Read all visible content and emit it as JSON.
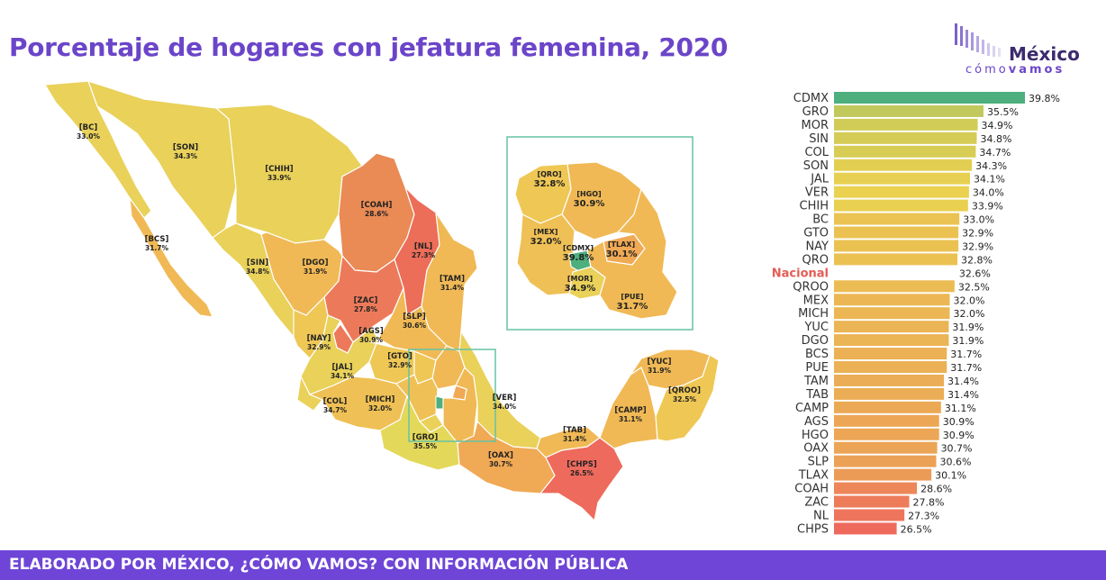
{
  "title": "Porcentaje de hogares con jefatura femenina, 2020",
  "logo": {
    "word": "México",
    "sub_light": "cómo",
    "sub_bold": "vamos"
  },
  "footer": "ELABORADO POR MÉXICO, ¿CÓMO VAMOS? CON INFORMACIÓN PÚBLICA",
  "colors": {
    "title": "#6b45c9",
    "footer_bg": "#6e45d6",
    "nacional_label": "#e35d55",
    "inset_border": "#66c2a5",
    "scale_high": "#4caf7d",
    "scale_mid": "#ead150",
    "scale_low": "#ee6a5d"
  },
  "map_labels": [
    {
      "code": "[BC]",
      "value": "33.0%"
    },
    {
      "code": "[SON]",
      "value": "34.3%"
    },
    {
      "code": "[CHIH]",
      "value": "33.9%"
    },
    {
      "code": "[BCS]",
      "value": "31.7%"
    },
    {
      "code": "[COAH]",
      "value": "28.6%"
    },
    {
      "code": "[NL]",
      "value": "27.3%"
    },
    {
      "code": "[SIN]",
      "value": "34.8%"
    },
    {
      "code": "[DGO]",
      "value": "31.9%"
    },
    {
      "code": "[TAM]",
      "value": "31.4%"
    },
    {
      "code": "[ZAC]",
      "value": "27.8%"
    },
    {
      "code": "[SLP]",
      "value": "30.6%"
    },
    {
      "code": "[NAY]",
      "value": "32.9%"
    },
    {
      "code": "[AGS]",
      "value": "30.9%"
    },
    {
      "code": "[GTO]",
      "value": "32.9%"
    },
    {
      "code": "[JAL]",
      "value": "34.1%"
    },
    {
      "code": "[VER]",
      "value": "34.0%"
    },
    {
      "code": "[COL]",
      "value": "34.7%"
    },
    {
      "code": "[MICH]",
      "value": "32.0%"
    },
    {
      "code": "[GRO]",
      "value": "35.5%"
    },
    {
      "code": "[OAX]",
      "value": "30.7%"
    },
    {
      "code": "[TAB]",
      "value": "31.4%"
    },
    {
      "code": "[CHPS]",
      "value": "26.5%"
    },
    {
      "code": "[CAMP]",
      "value": "31.1%"
    },
    {
      "code": "[YUC]",
      "value": "31.9%"
    },
    {
      "code": "[QROO]",
      "value": "32.5%"
    }
  ],
  "inset_labels": [
    {
      "code": "[QRO]",
      "value": "32.8%"
    },
    {
      "code": "[HGO]",
      "value": "30.9%"
    },
    {
      "code": "[MEX]",
      "value": "32.0%"
    },
    {
      "code": "[CDMX]",
      "value": "39.8%"
    },
    {
      "code": "[TLAX]",
      "value": "30.1%"
    },
    {
      "code": "[MOR]",
      "value": "34.9%"
    },
    {
      "code": "[PUE]",
      "value": "31.7%"
    }
  ],
  "chart_data": {
    "type": "bar",
    "orientation": "horizontal",
    "title": "Porcentaje de hogares con jefatura femenina, 2020",
    "categories": [
      "CDMX",
      "GRO",
      "MOR",
      "SIN",
      "COL",
      "SON",
      "JAL",
      "VER",
      "CHIH",
      "BC",
      "GTO",
      "NAY",
      "QRO",
      "Nacional",
      "QROO",
      "MEX",
      "MICH",
      "YUC",
      "DGO",
      "BCS",
      "PUE",
      "TAM",
      "TAB",
      "CAMP",
      "AGS",
      "HGO",
      "OAX",
      "SLP",
      "TLAX",
      "COAH",
      "ZAC",
      "NL",
      "CHPS"
    ],
    "values": [
      39.8,
      35.5,
      34.9,
      34.8,
      34.7,
      34.3,
      34.1,
      34.0,
      33.9,
      33.0,
      32.9,
      32.9,
      32.8,
      32.6,
      32.5,
      32.0,
      32.0,
      31.9,
      31.9,
      31.7,
      31.7,
      31.4,
      31.4,
      31.1,
      30.9,
      30.9,
      30.7,
      30.6,
      30.1,
      28.6,
      27.8,
      27.3,
      26.5
    ],
    "value_labels": [
      "39.8%",
      "35.5%",
      "34.9%",
      "34.8%",
      "34.7%",
      "34.3%",
      "34.1%",
      "34.0%",
      "33.9%",
      "33.0%",
      "32.9%",
      "32.9%",
      "32.8%",
      "32.6%",
      "32.5%",
      "32.0%",
      "32.0%",
      "31.9%",
      "31.9%",
      "31.7%",
      "31.7%",
      "31.4%",
      "31.4%",
      "31.1%",
      "30.9%",
      "30.9%",
      "30.7%",
      "30.6%",
      "30.1%",
      "28.6%",
      "27.8%",
      "27.3%",
      "26.5%"
    ],
    "highlight": "Nacional",
    "xlabel": "",
    "ylabel": "",
    "grid": false,
    "legend": "none"
  }
}
